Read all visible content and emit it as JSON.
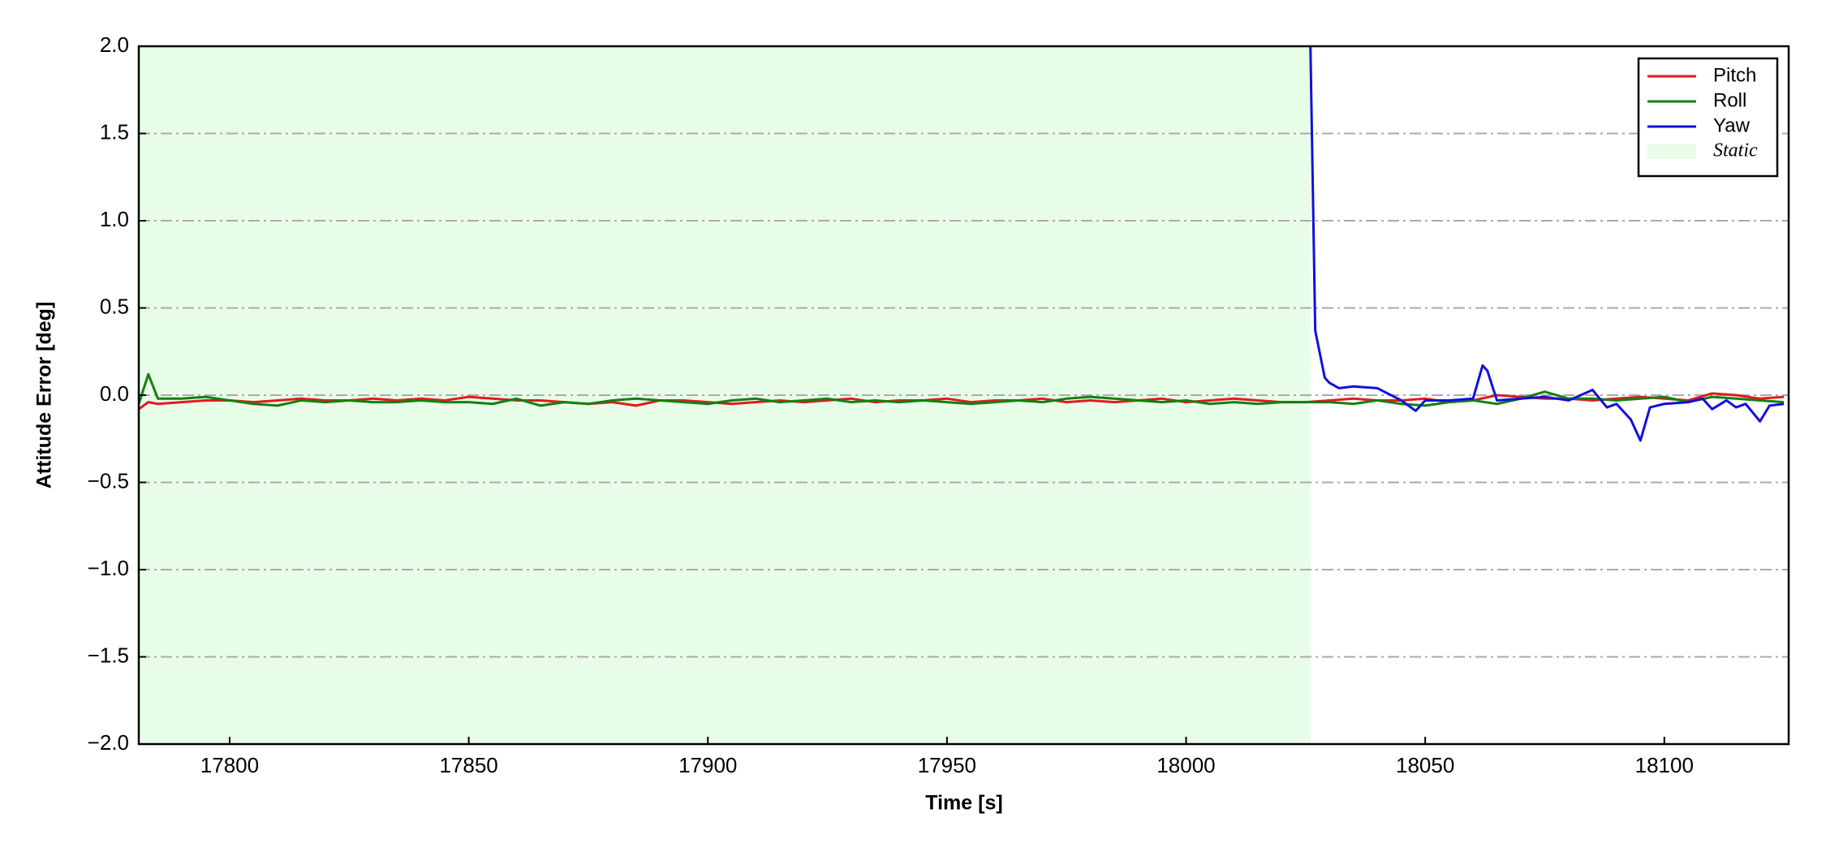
{
  "chart_data": {
    "type": "line",
    "xlabel": "Time [s]",
    "ylabel": "Attitude Error [deg]",
    "xlim": [
      17781,
      18126
    ],
    "ylim": [
      -2,
      2
    ],
    "xticks": [
      17800,
      17850,
      17900,
      17950,
      18000,
      18050,
      18100
    ],
    "yticks": [
      {
        "value": -2,
        "label": "−2.0"
      },
      {
        "value": -1.5,
        "label": "−1.5"
      },
      {
        "value": -1,
        "label": "−1.0"
      },
      {
        "value": -0.5,
        "label": "−0.5"
      },
      {
        "value": 0,
        "label": "0.0"
      },
      {
        "value": 0.5,
        "label": "0.5"
      },
      {
        "value": 1,
        "label": "1.0"
      },
      {
        "value": 1.5,
        "label": "1.5"
      },
      {
        "value": 2,
        "label": "2.0"
      }
    ],
    "grid": true,
    "legend": "upper right",
    "x": [
      17781,
      17783,
      17785,
      17790,
      17795,
      17800,
      17805,
      17810,
      17815,
      17820,
      17825,
      17830,
      17835,
      17840,
      17845,
      17850,
      17855,
      17860,
      17865,
      17870,
      17875,
      17880,
      17885,
      17890,
      17895,
      17900,
      17905,
      17910,
      17915,
      17920,
      17925,
      17930,
      17935,
      17940,
      17945,
      17950,
      17955,
      17960,
      17965,
      17970,
      17975,
      17980,
      17985,
      17990,
      17995,
      18000,
      18005,
      18010,
      18015,
      18020,
      18025,
      18030,
      18035,
      18040,
      18045,
      18050,
      18055,
      18060,
      18065,
      18070,
      18075,
      18080,
      18085,
      18090,
      18095,
      18100,
      18105,
      18110,
      18115,
      18120,
      18125
    ],
    "series": [
      {
        "name": "Pitch",
        "color": "#e31a1c",
        "values": [
          -0.08,
          -0.04,
          -0.05,
          -0.04,
          -0.03,
          -0.03,
          -0.04,
          -0.03,
          -0.02,
          -0.03,
          -0.03,
          -0.02,
          -0.03,
          -0.02,
          -0.03,
          -0.01,
          -0.02,
          -0.03,
          -0.03,
          -0.04,
          -0.05,
          -0.04,
          -0.06,
          -0.03,
          -0.03,
          -0.04,
          -0.05,
          -0.04,
          -0.03,
          -0.04,
          -0.03,
          -0.02,
          -0.04,
          -0.03,
          -0.03,
          -0.02,
          -0.04,
          -0.03,
          -0.03,
          -0.02,
          -0.04,
          -0.03,
          -0.04,
          -0.03,
          -0.02,
          -0.04,
          -0.03,
          -0.02,
          -0.03,
          -0.04,
          -0.04,
          -0.03,
          -0.02,
          -0.03,
          -0.03,
          -0.02,
          -0.04,
          -0.03,
          0.0,
          -0.01,
          -0.02,
          -0.02,
          -0.03,
          -0.02,
          -0.01,
          -0.02,
          -0.03,
          0.01,
          0.0,
          -0.02,
          -0.01
        ]
      },
      {
        "name": "Roll",
        "color": "#138013",
        "values": [
          -0.05,
          0.12,
          -0.02,
          -0.02,
          -0.01,
          -0.03,
          -0.05,
          -0.06,
          -0.03,
          -0.04,
          -0.03,
          -0.04,
          -0.04,
          -0.03,
          -0.04,
          -0.04,
          -0.05,
          -0.02,
          -0.06,
          -0.04,
          -0.05,
          -0.03,
          -0.02,
          -0.03,
          -0.04,
          -0.05,
          -0.03,
          -0.02,
          -0.04,
          -0.03,
          -0.02,
          -0.04,
          -0.03,
          -0.04,
          -0.03,
          -0.04,
          -0.05,
          -0.04,
          -0.03,
          -0.04,
          -0.02,
          -0.01,
          -0.02,
          -0.03,
          -0.04,
          -0.03,
          -0.05,
          -0.04,
          -0.05,
          -0.04,
          -0.04,
          -0.04,
          -0.05,
          -0.03,
          -0.05,
          -0.06,
          -0.04,
          -0.03,
          -0.05,
          -0.02,
          0.02,
          -0.02,
          -0.02,
          -0.03,
          -0.02,
          -0.01,
          -0.04,
          -0.01,
          -0.02,
          -0.03,
          -0.04
        ]
      },
      {
        "name": "Yaw",
        "color": "#1010dd",
        "x": [
          18026,
          18027,
          18029,
          18030,
          18032,
          18035,
          18040,
          18045,
          18048,
          18050,
          18055,
          18060,
          18062,
          18063,
          18065,
          18070,
          18075,
          18080,
          18085,
          18088,
          18090,
          18093,
          18095,
          18097,
          18100,
          18105,
          18108,
          18110,
          18113,
          18115,
          18117,
          18120,
          18122,
          18125
        ],
        "values": [
          2.0,
          0.37,
          0.1,
          0.07,
          0.04,
          0.05,
          0.04,
          -0.03,
          -0.09,
          -0.03,
          -0.03,
          -0.02,
          0.17,
          0.14,
          -0.03,
          -0.02,
          -0.01,
          -0.03,
          0.03,
          -0.07,
          -0.05,
          -0.14,
          -0.26,
          -0.07,
          -0.05,
          -0.04,
          -0.02,
          -0.08,
          -0.03,
          -0.07,
          -0.05,
          -0.15,
          -0.06,
          -0.05
        ]
      }
    ],
    "shaded": {
      "name": "Static",
      "color": "#e8fde8",
      "x": [
        17781,
        18026
      ]
    }
  }
}
